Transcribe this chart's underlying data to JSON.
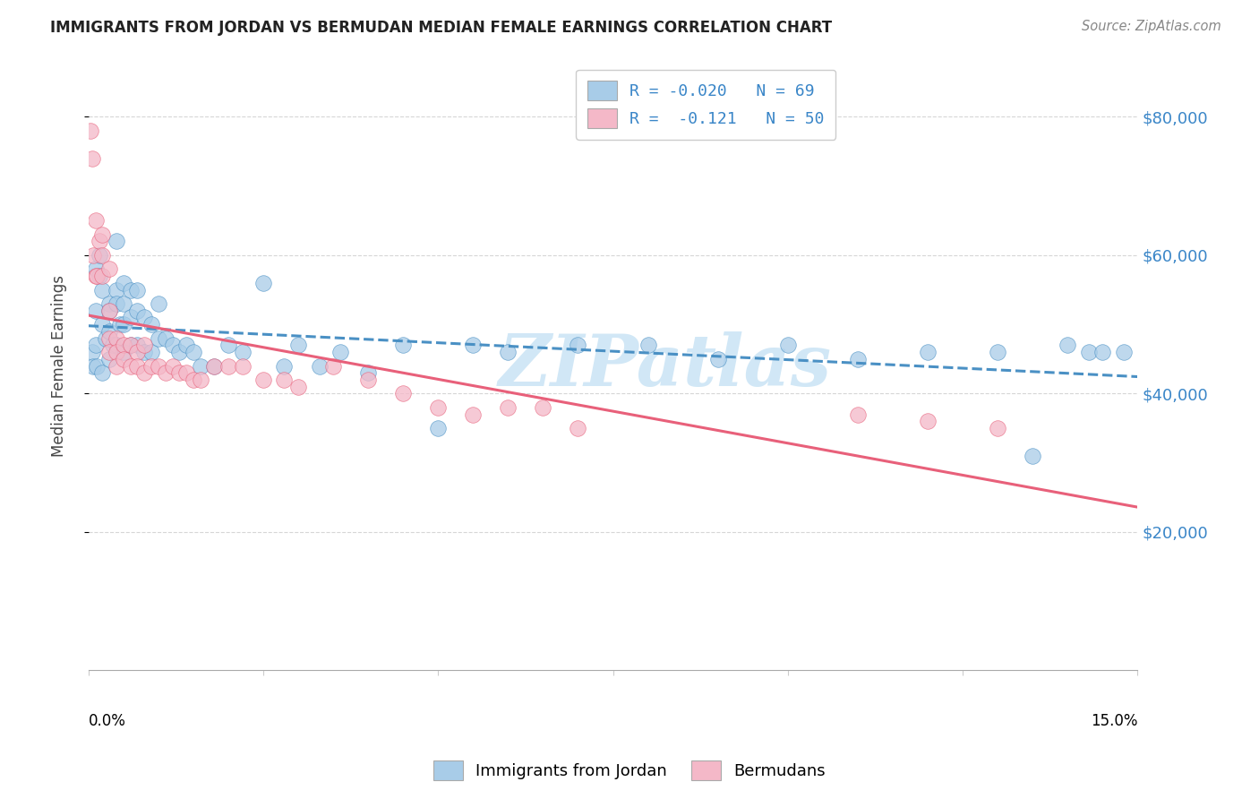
{
  "title": "IMMIGRANTS FROM JORDAN VS BERMUDAN MEDIAN FEMALE EARNINGS CORRELATION CHART",
  "source": "Source: ZipAtlas.com",
  "ylabel": "Median Female Earnings",
  "yticks": [
    20000,
    40000,
    60000,
    80000
  ],
  "ytick_labels": [
    "$20,000",
    "$40,000",
    "$60,000",
    "$80,000"
  ],
  "xlim": [
    0.0,
    0.15
  ],
  "ylim": [
    0,
    88000
  ],
  "blue_color": "#a8cce8",
  "pink_color": "#f4b8c8",
  "blue_line_color": "#4a90c4",
  "pink_line_color": "#e8607a",
  "watermark_color": "#cce5f5",
  "jordan_x": [
    0.0005,
    0.0007,
    0.001,
    0.001,
    0.001,
    0.0012,
    0.0015,
    0.0015,
    0.002,
    0.002,
    0.002,
    0.0025,
    0.003,
    0.003,
    0.003,
    0.003,
    0.0035,
    0.004,
    0.004,
    0.004,
    0.004,
    0.0045,
    0.005,
    0.005,
    0.005,
    0.005,
    0.006,
    0.006,
    0.006,
    0.007,
    0.007,
    0.007,
    0.008,
    0.008,
    0.009,
    0.009,
    0.01,
    0.01,
    0.011,
    0.012,
    0.013,
    0.014,
    0.015,
    0.016,
    0.018,
    0.02,
    0.022,
    0.025,
    0.028,
    0.03,
    0.033,
    0.036,
    0.04,
    0.045,
    0.05,
    0.055,
    0.06,
    0.07,
    0.08,
    0.09,
    0.1,
    0.11,
    0.12,
    0.13,
    0.135,
    0.14,
    0.143,
    0.145,
    0.148
  ],
  "jordan_y": [
    46000,
    44000,
    58000,
    52000,
    47000,
    44000,
    60000,
    57000,
    55000,
    50000,
    43000,
    48000,
    53000,
    52000,
    49000,
    45000,
    47000,
    62000,
    55000,
    53000,
    47000,
    50000,
    56000,
    53000,
    50000,
    46000,
    55000,
    51000,
    47000,
    55000,
    52000,
    47000,
    51000,
    46000,
    50000,
    46000,
    53000,
    48000,
    48000,
    47000,
    46000,
    47000,
    46000,
    44000,
    44000,
    47000,
    46000,
    56000,
    44000,
    47000,
    44000,
    46000,
    43000,
    47000,
    35000,
    47000,
    46000,
    47000,
    47000,
    45000,
    47000,
    45000,
    46000,
    46000,
    31000,
    47000,
    46000,
    46000,
    46000
  ],
  "bermuda_x": [
    0.0003,
    0.0005,
    0.0007,
    0.001,
    0.001,
    0.0012,
    0.0015,
    0.002,
    0.002,
    0.002,
    0.003,
    0.003,
    0.003,
    0.003,
    0.004,
    0.004,
    0.004,
    0.005,
    0.005,
    0.006,
    0.006,
    0.007,
    0.007,
    0.008,
    0.008,
    0.009,
    0.01,
    0.011,
    0.012,
    0.013,
    0.014,
    0.015,
    0.016,
    0.018,
    0.02,
    0.022,
    0.025,
    0.028,
    0.03,
    0.035,
    0.04,
    0.045,
    0.05,
    0.055,
    0.06,
    0.065,
    0.07,
    0.11,
    0.12,
    0.13
  ],
  "bermuda_y": [
    78000,
    74000,
    60000,
    65000,
    57000,
    57000,
    62000,
    63000,
    60000,
    57000,
    58000,
    52000,
    48000,
    46000,
    48000,
    46000,
    44000,
    47000,
    45000,
    47000,
    44000,
    46000,
    44000,
    47000,
    43000,
    44000,
    44000,
    43000,
    44000,
    43000,
    43000,
    42000,
    42000,
    44000,
    44000,
    44000,
    42000,
    42000,
    41000,
    44000,
    42000,
    40000,
    38000,
    37000,
    38000,
    38000,
    35000,
    37000,
    36000,
    35000
  ]
}
